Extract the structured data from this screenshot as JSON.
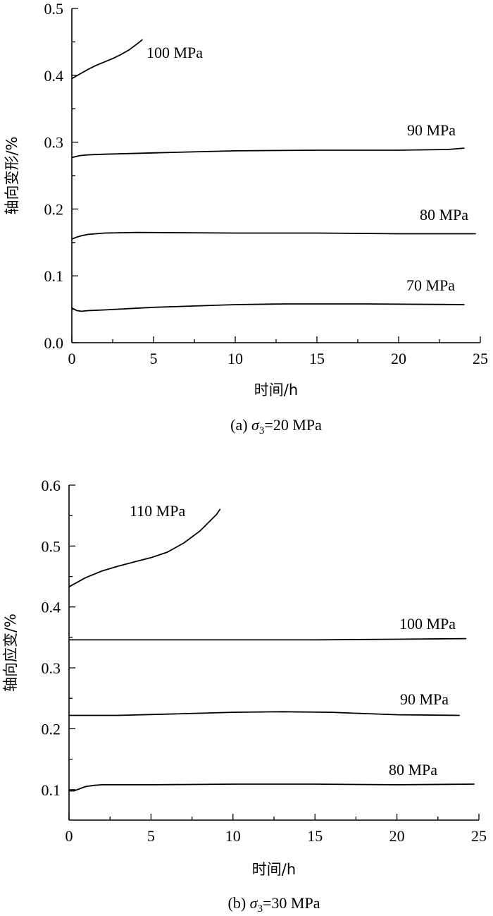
{
  "chart_data": [
    {
      "type": "line",
      "caption": {
        "prefix": "(a) ",
        "symbol": "σ",
        "subscript": "3",
        "suffix": "=20 MPa"
      },
      "xlabel": "时间/h",
      "ylabel": "轴向变形/%",
      "xlim": [
        0,
        25
      ],
      "ylim": [
        0,
        0.5
      ],
      "xticks": [
        0,
        5,
        10,
        15,
        20,
        25
      ],
      "yticks": [
        "0.0",
        "0.1",
        "0.2",
        "0.3",
        "0.4",
        "0.5"
      ],
      "grid": false,
      "series": [
        {
          "name": "100 MPa",
          "x": [
            0,
            0.5,
            1,
            1.5,
            2,
            2.5,
            3,
            3.5,
            4,
            4.3
          ],
          "y": [
            0.395,
            0.402,
            0.409,
            0.415,
            0.42,
            0.425,
            0.431,
            0.438,
            0.447,
            0.453
          ]
        },
        {
          "name": "90 MPa",
          "x": [
            0,
            0.5,
            1,
            2,
            5,
            10,
            15,
            20,
            23,
            24
          ],
          "y": [
            0.277,
            0.28,
            0.281,
            0.282,
            0.284,
            0.287,
            0.288,
            0.288,
            0.289,
            0.291
          ]
        },
        {
          "name": "80 MPa",
          "x": [
            0,
            0.3,
            0.6,
            1,
            2,
            4,
            10,
            15,
            20,
            24.7
          ],
          "y": [
            0.155,
            0.158,
            0.16,
            0.162,
            0.164,
            0.165,
            0.164,
            0.164,
            0.163,
            0.163
          ]
        },
        {
          "name": "70 MPa",
          "x": [
            0,
            0.3,
            0.6,
            1,
            2,
            5,
            10,
            13,
            18,
            24
          ],
          "y": [
            0.052,
            0.048,
            0.047,
            0.048,
            0.049,
            0.053,
            0.057,
            0.058,
            0.058,
            0.057
          ]
        }
      ]
    },
    {
      "type": "line",
      "caption": {
        "prefix": "(b) ",
        "symbol": "σ",
        "subscript": "3",
        "suffix": "=30 MPa"
      },
      "xlabel": "时间/h",
      "ylabel": "轴向应变/%",
      "xlim": [
        0,
        25
      ],
      "ylim": [
        0.05,
        0.6
      ],
      "xticks": [
        0,
        5,
        10,
        15,
        20,
        25
      ],
      "yticks": [
        "0.1",
        "0.2",
        "0.3",
        "0.4",
        "0.5",
        "0.6"
      ],
      "grid": false,
      "series": [
        {
          "name": "110 MPa",
          "x": [
            0,
            1,
            2,
            3,
            4,
            5,
            6,
            7,
            8,
            9,
            9.2
          ],
          "y": [
            0.433,
            0.448,
            0.459,
            0.467,
            0.474,
            0.481,
            0.49,
            0.505,
            0.525,
            0.552,
            0.56
          ]
        },
        {
          "name": "100 MPa",
          "x": [
            0,
            5,
            10,
            15,
            20,
            24.2
          ],
          "y": [
            0.346,
            0.346,
            0.346,
            0.346,
            0.347,
            0.348
          ]
        },
        {
          "name": "90 MPa",
          "x": [
            0,
            3,
            6,
            10,
            13,
            16,
            18,
            20,
            23.8
          ],
          "y": [
            0.222,
            0.222,
            0.224,
            0.227,
            0.228,
            0.227,
            0.225,
            0.223,
            0.222
          ]
        },
        {
          "name": "80 MPa",
          "x": [
            0,
            0.3,
            0.6,
            1,
            1.5,
            2,
            5,
            10,
            15,
            20,
            24.7
          ],
          "y": [
            0.098,
            0.098,
            0.101,
            0.105,
            0.107,
            0.108,
            0.108,
            0.109,
            0.109,
            0.108,
            0.109
          ]
        }
      ]
    }
  ]
}
